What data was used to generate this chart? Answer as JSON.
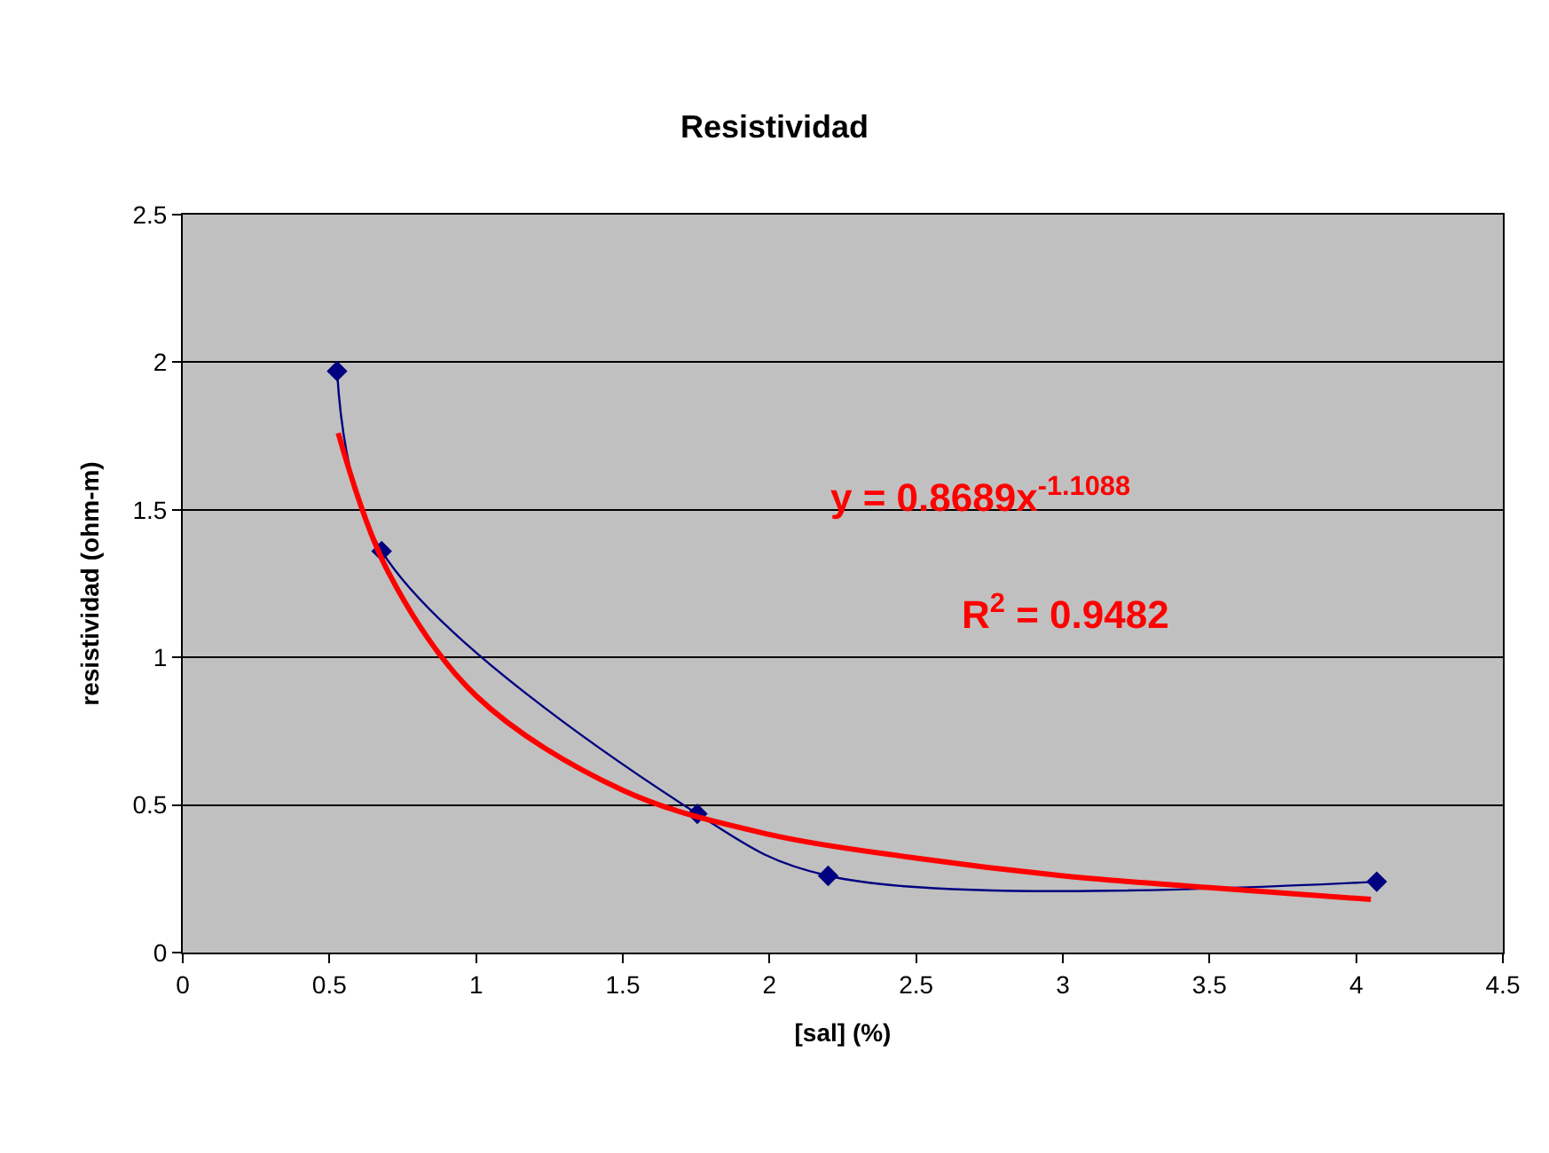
{
  "chart_data": {
    "type": "line",
    "title": "Resistividad",
    "xlabel": "[sal] (%)",
    "ylabel": "resistividad (ohm-m)",
    "xlim": [
      0,
      4.5
    ],
    "xticks": [
      0,
      0.5,
      1,
      1.5,
      2,
      2.5,
      3,
      3.5,
      4,
      4.5
    ],
    "ylim": [
      0,
      2.5
    ],
    "yticks": [
      0,
      0.5,
      1,
      1.5,
      2,
      2.5
    ],
    "grid": "y",
    "series": [
      {
        "color": "#000080",
        "marker": "diamond",
        "x": [
          0.526,
          0.678,
          1.754,
          2.2,
          4.07
        ],
        "values": [
          1.97,
          1.36,
          0.47,
          0.26,
          0.24
        ]
      },
      {
        "color": "#ff0000",
        "marker": "none",
        "x": [
          0.53,
          0.7,
          1,
          1.5,
          2,
          2.5,
          3,
          3.5,
          4.05
        ],
        "values": [
          1.76,
          1.29,
          0.87,
          0.55,
          0.4,
          0.32,
          0.26,
          0.22,
          0.18
        ]
      }
    ],
    "annotations": [
      "y = 0.8689x$^{-1.1088}$",
      "R$^{2}$ = 0.9482"
    ]
  }
}
